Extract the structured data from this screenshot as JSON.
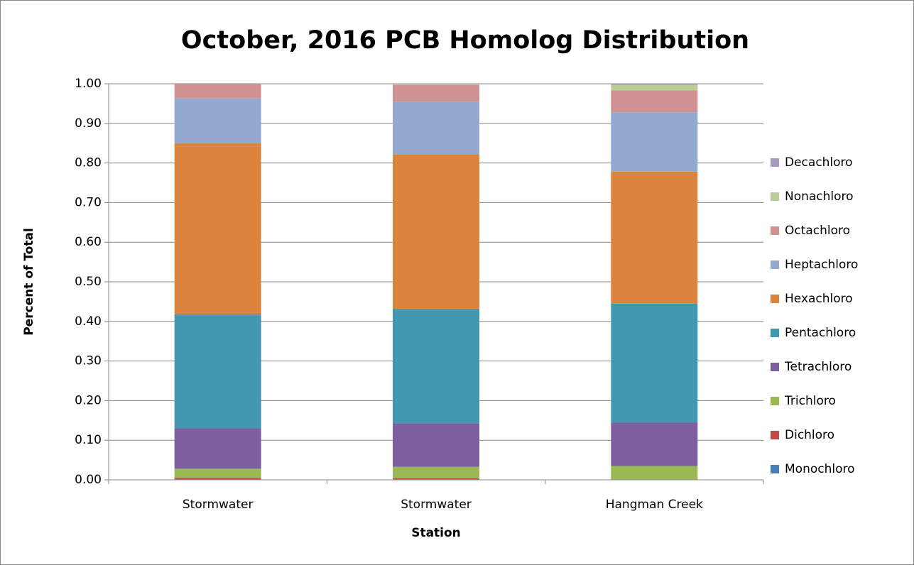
{
  "chart_data": {
    "type": "stacked_bar",
    "title": "October, 2016 PCB Homolog Distribution",
    "x_label": "Station",
    "y_label": "Percent of Total",
    "categories": [
      "Stormwater",
      "Stormwater",
      "Hangman Creek"
    ],
    "series": [
      {
        "name": "Monochloro",
        "color": "#4a7ebb",
        "values": [
          0.001,
          0.001,
          0.0
        ]
      },
      {
        "name": "Dichloro",
        "color": "#be4b48",
        "values": [
          0.004,
          0.003,
          0.001
        ]
      },
      {
        "name": "Trichloro",
        "color": "#98b954",
        "values": [
          0.023,
          0.029,
          0.034
        ]
      },
      {
        "name": "Tetrachloro",
        "color": "#7d5fa0",
        "values": [
          0.102,
          0.11,
          0.11
        ]
      },
      {
        "name": "Pentachloro",
        "color": "#4198af",
        "values": [
          0.288,
          0.289,
          0.3
        ]
      },
      {
        "name": "Hexachloro",
        "color": "#db843d",
        "values": [
          0.432,
          0.39,
          0.333
        ]
      },
      {
        "name": "Heptachloro",
        "color": "#93a9cf",
        "values": [
          0.113,
          0.133,
          0.15
        ]
      },
      {
        "name": "Octachloro",
        "color": "#d19392",
        "values": [
          0.037,
          0.042,
          0.055
        ]
      },
      {
        "name": "Nonachloro",
        "color": "#b9cd96",
        "values": [
          0.0,
          0.002,
          0.014
        ]
      },
      {
        "name": "Decachloro",
        "color": "#a99bbd",
        "values": [
          0.0,
          0.001,
          0.003
        ]
      }
    ],
    "ylim": [
      0,
      1
    ],
    "yticks": [
      {
        "value": 0,
        "label": "0.00"
      },
      {
        "value": 0.1,
        "label": "0.10"
      },
      {
        "value": 0.2,
        "label": "0.20"
      },
      {
        "value": 0.3,
        "label": "0.30"
      },
      {
        "value": 0.4,
        "label": "0.40"
      },
      {
        "value": 0.5,
        "label": "0.50"
      },
      {
        "value": 0.6,
        "label": "0.60"
      },
      {
        "value": 0.7,
        "label": "0.70"
      },
      {
        "value": 0.8,
        "label": "0.80"
      },
      {
        "value": 0.9,
        "label": "0.90"
      },
      {
        "value": 1,
        "label": "1.00"
      }
    ],
    "grid": true,
    "legend": "right"
  }
}
